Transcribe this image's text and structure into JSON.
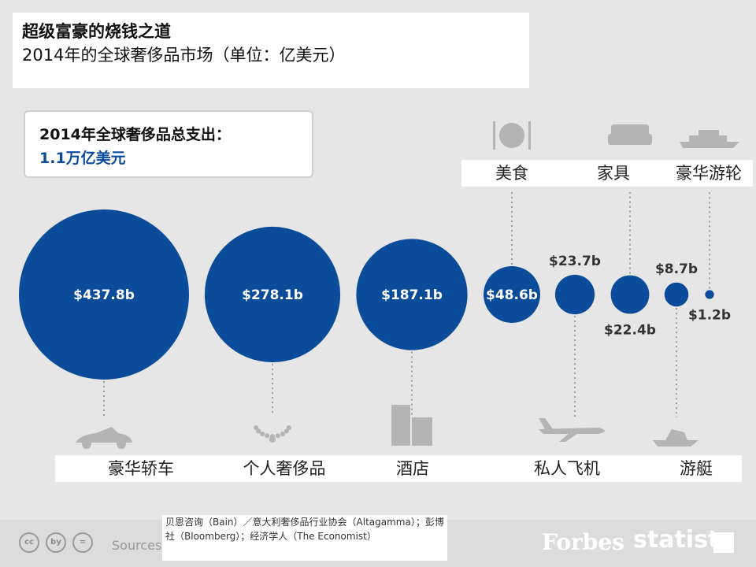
{
  "title": "超级富豪的烧钱之道",
  "subtitle": "2014年的全球奢侈品市场（单位：亿美元）",
  "total": {
    "label": "2014年全球奢侈品总支出：",
    "value": "1.1万亿美元"
  },
  "chart_data": {
    "type": "bubble",
    "title": "超级富豪的烧钱之道",
    "subtitle": "2014年的全球奢侈品市场（单位：亿美元）",
    "unit": "billion USD",
    "categories": [
      "豪华轿车",
      "个人奢侈品",
      "酒店",
      "美食",
      "私人飞机",
      "家具",
      "游艇",
      "豪华游轮"
    ],
    "values": [
      437.8,
      278.1,
      187.1,
      48.6,
      23.7,
      22.4,
      8.7,
      1.2
    ],
    "value_labels": [
      "$437.8b",
      "$278.1b",
      "$187.1b",
      "$48.6b",
      "$23.7b",
      "$22.4b",
      "$8.7b",
      "$1.2b"
    ],
    "label_position": [
      "bottom",
      "bottom",
      "bottom",
      "top",
      "bottom",
      "top",
      "bottom",
      "top"
    ],
    "value_label_position": [
      "inside",
      "inside",
      "inside",
      "inside",
      "above",
      "below",
      "above",
      "below"
    ],
    "icons": [
      "car-icon",
      "necklace-icon",
      "hotel-building-icon",
      "plate-cutlery-icon",
      "private-jet-icon",
      "sofa-icon",
      "yacht-icon",
      "cruise-ship-icon"
    ],
    "bubble_color": "#0a4c9a"
  },
  "sources": {
    "label": "Sources:",
    "text": "贝恩咨询（Bain）／意大利奢侈品行业协会（Altagamma）；彭博社（Bloomberg）；经济学人（The Economist）"
  },
  "brands": {
    "forbes": "Forbes",
    "statista": "statista"
  },
  "license_icons": [
    "cc",
    "by",
    "="
  ]
}
